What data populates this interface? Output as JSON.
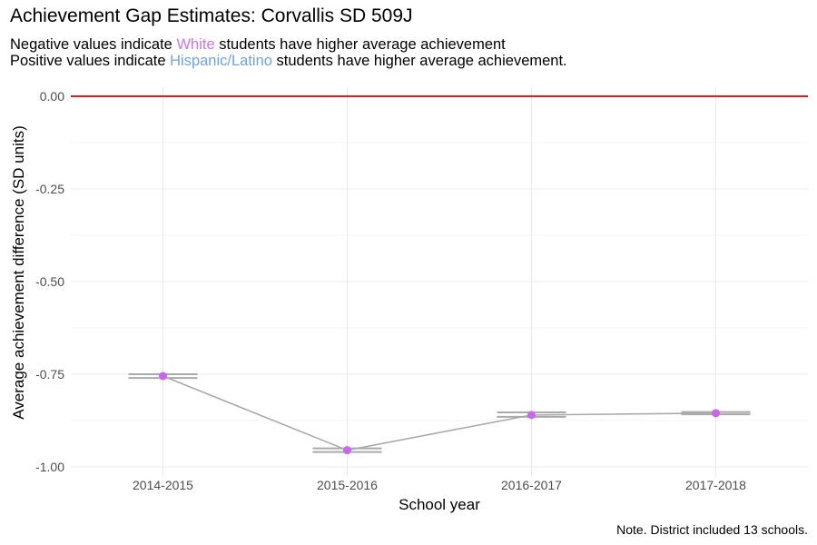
{
  "title": "Achievement Gap Estimates: Corvallis SD 509J",
  "subtitle_line1": {
    "before": "Negative values indicate ",
    "highlight": "White",
    "after": " students have higher average achievement"
  },
  "subtitle_line2": {
    "before": "Positive values indicate ",
    "highlight": "Hispanic/Latino",
    "after": " students have higher average achievement."
  },
  "caption": "Note. District included 13 schools.",
  "colors": {
    "white_group": "#c875ea",
    "hispanic_group": "#6fa3df",
    "reference_line": "#e31a1c",
    "points": "#c866ee",
    "connector": "#aaaaaa",
    "grid": "#ebebeb"
  },
  "chart_data": {
    "type": "line",
    "xlabel": "School year",
    "ylabel": "Average achievement difference (SD units)",
    "categories": [
      "2014-2015",
      "2015-2016",
      "2016-2017",
      "2017-2018"
    ],
    "values": [
      -0.755,
      -0.955,
      -0.86,
      -0.855
    ],
    "error_range": [
      [
        -0.76,
        -0.75
      ],
      [
        -0.96,
        -0.95
      ],
      [
        -0.865,
        -0.853
      ],
      [
        -0.858,
        -0.852
      ]
    ],
    "ylim": [
      -1.0,
      0.0
    ],
    "yticks": [
      0.0,
      -0.25,
      -0.5,
      -0.75,
      -1.0
    ],
    "ytick_labels": [
      "0.00",
      "-0.25",
      "-0.50",
      "-0.75",
      "-1.00"
    ],
    "reference_line": 0.0,
    "grid": true
  }
}
